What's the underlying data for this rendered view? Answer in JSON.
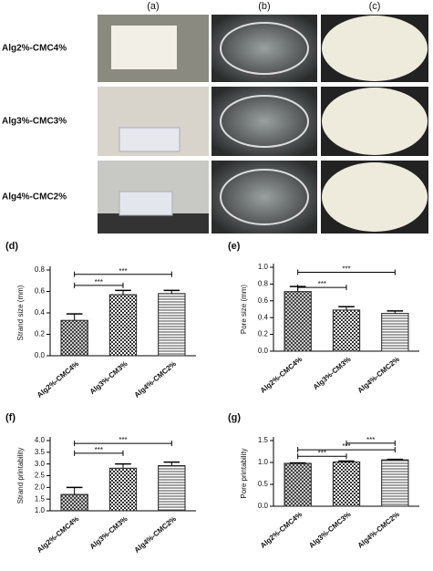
{
  "panels": {
    "column_labels": [
      "(a)",
      "(b)",
      "(c)"
    ],
    "row_labels": [
      "Alg2%-CMC4%",
      "Alg3%-CMC3%",
      "Alg4%-CMC2%"
    ]
  },
  "chart_data": [
    {
      "type": "bar",
      "panel_label": "(d)",
      "y_label": "Strand size (mm)",
      "categories": [
        "Alg2%-CMC4%",
        "Alg3%-CM3%",
        "Alg4%-CMC2%"
      ],
      "values": [
        0.33,
        0.57,
        0.58
      ],
      "errors": [
        0.06,
        0.04,
        0.03
      ],
      "ylim": [
        0,
        0.8
      ],
      "yticks": [
        {
          "value": 0,
          "label": "0.0"
        },
        0.2,
        0.4,
        0.6,
        0.8
      ],
      "annotations": [
        "***",
        "***"
      ]
    },
    {
      "type": "bar",
      "panel_label": "(e)",
      "y_label": "Pore size (mm)",
      "categories": [
        "Alg2%-CMC4%",
        "Alg3%-CM3%",
        "Alg4%-CMC2%"
      ],
      "values": [
        0.71,
        0.49,
        0.45
      ],
      "errors": [
        0.06,
        0.04,
        0.03
      ],
      "ylim": [
        0,
        1
      ],
      "yticks": [
        {
          "value": 0,
          "label": "0.0"
        },
        0.2,
        0.4,
        0.6,
        0.8,
        {
          "value": 1,
          "label": "1.0"
        }
      ],
      "annotations": [
        "***",
        "***"
      ]
    },
    {
      "type": "bar",
      "panel_label": "(f)",
      "y_label": "Strand printability",
      "categories": [
        "Alg2%-CMC4%",
        "Alg3%-CM3%",
        "Alg4%-CMC2%"
      ],
      "values": [
        1.7,
        2.82,
        2.93
      ],
      "errors": [
        0.3,
        0.18,
        0.15
      ],
      "ylim": [
        1,
        4
      ],
      "yticks": [
        {
          "value": 1,
          "label": "1.0"
        },
        1.5,
        {
          "value": 2,
          "label": "2.0"
        },
        2.5,
        {
          "value": 3,
          "label": "3.0"
        },
        3.5,
        {
          "value": 4,
          "label": "4.0"
        }
      ],
      "annotations": [
        "***",
        "***"
      ]
    },
    {
      "type": "bar",
      "panel_label": "(g)",
      "y_label": "Pore printability",
      "categories": [
        "Alg2%-CMC4%",
        "Alg3%-CMC3%",
        "Alg4%-CMC2%"
      ],
      "values": [
        0.98,
        1.01,
        1.06
      ],
      "errors": [
        0.01,
        0.02,
        0.01
      ],
      "ylim": [
        0,
        1.5
      ],
      "yticks": [
        {
          "value": 0,
          "label": "0.0"
        },
        0.5,
        {
          "value": 1,
          "label": "1.0"
        },
        1.5
      ],
      "annotations": [
        "***",
        "***",
        "***"
      ]
    }
  ]
}
